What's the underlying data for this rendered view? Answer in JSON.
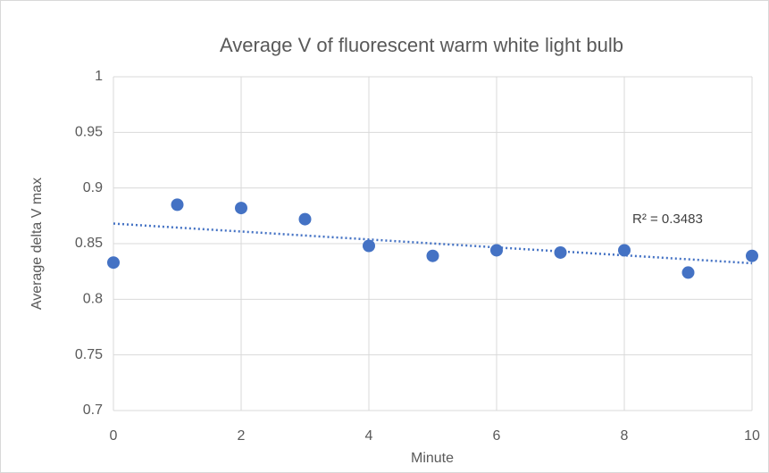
{
  "chart_data": {
    "type": "scatter",
    "title": "Average V of fluorescent warm white light bulb",
    "x_label": "Minute",
    "y_label": "Average delta V max",
    "x": [
      0,
      1,
      2,
      3,
      4,
      5,
      6,
      7,
      8,
      9,
      10
    ],
    "series": [
      {
        "color": "#4472c4",
        "values": [
          0.833,
          0.885,
          0.882,
          0.872,
          0.848,
          0.839,
          0.844,
          0.842,
          0.844,
          0.824,
          0.839
        ]
      }
    ],
    "xlim": [
      0,
      10
    ],
    "xticks": [
      0,
      2,
      4,
      6,
      8,
      10
    ],
    "ylim": [
      0.7,
      1
    ],
    "yticks": [
      0.7,
      0.75,
      0.8,
      0.85,
      0.9,
      0.95,
      1
    ],
    "grid": true,
    "trendline": "linear",
    "annotation": "R² = 0.3483"
  }
}
